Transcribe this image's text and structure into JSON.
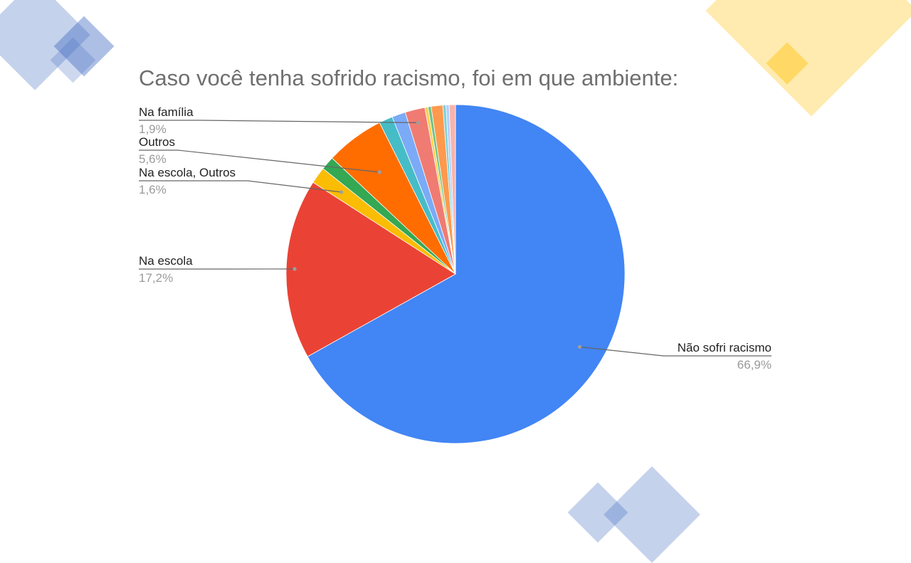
{
  "colors": {
    "deco_blue": "#4a72c4",
    "deco_yellow": "#ffd24d"
  },
  "chart_data": {
    "type": "pie",
    "title": "Caso você tenha sofrido racismo, foi em que ambiente:",
    "slices": [
      {
        "label": "Não sofri racismo",
        "value": 66.9,
        "display": "66,9%",
        "color": "#4285f4",
        "labeled": true
      },
      {
        "label": "Na escola",
        "value": 17.2,
        "display": "17,2%",
        "color": "#ea4335",
        "labeled": true
      },
      {
        "label": "Na escola, Outros",
        "value": 1.6,
        "display": "1,6%",
        "color": "#fbbc04",
        "labeled": true
      },
      {
        "label": "",
        "value": 1.3,
        "display": "",
        "color": "#34a853",
        "labeled": false
      },
      {
        "label": "Outros",
        "value": 5.6,
        "display": "5,6%",
        "color": "#ff6d01",
        "labeled": true
      },
      {
        "label": "",
        "value": 1.3,
        "display": "",
        "color": "#46bdc6",
        "labeled": false
      },
      {
        "label": "",
        "value": 1.3,
        "display": "",
        "color": "#7baaf7",
        "labeled": false
      },
      {
        "label": "Na família",
        "value": 1.9,
        "display": "1,9%",
        "color": "#f07b72",
        "labeled": true
      },
      {
        "label": "",
        "value": 0.3,
        "display": "",
        "color": "#fcd04f",
        "labeled": false
      },
      {
        "label": "",
        "value": 0.3,
        "display": "",
        "color": "#71c287",
        "labeled": false
      },
      {
        "label": "",
        "value": 1.1,
        "display": "",
        "color": "#ff994d",
        "labeled": false
      },
      {
        "label": "",
        "value": 0.3,
        "display": "",
        "color": "#7ed1d7",
        "labeled": false
      },
      {
        "label": "",
        "value": 0.3,
        "display": "",
        "color": "#b3cefb",
        "labeled": false
      },
      {
        "label": "",
        "value": 0.6,
        "display": "",
        "color": "#f7b4ae",
        "labeled": false
      }
    ]
  }
}
